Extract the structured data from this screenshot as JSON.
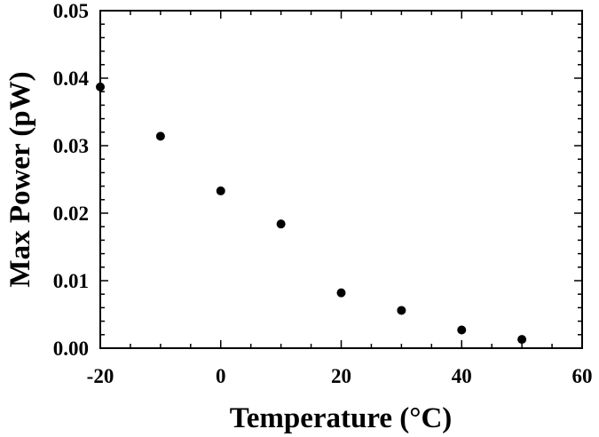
{
  "chart_data": {
    "type": "scatter",
    "xlabel": "Temperature (°C)",
    "ylabel": "Max Power (pW)",
    "xlim": [
      -20,
      60
    ],
    "ylim": [
      0,
      0.05
    ],
    "x_ticks": [
      -20,
      0,
      20,
      40,
      60
    ],
    "x_tick_labels": [
      "-20",
      "0",
      "20",
      "40",
      "60"
    ],
    "y_ticks": [
      0,
      0.01,
      0.02,
      0.03,
      0.04,
      0.05
    ],
    "y_tick_labels": [
      "0.00",
      "0.01",
      "0.02",
      "0.03",
      "0.04",
      "0.05"
    ],
    "grid": false,
    "legend": "none",
    "marker_color": "#000000",
    "series": [
      {
        "x": [
          -20,
          -10,
          0,
          10,
          20,
          30,
          40,
          50
        ],
        "y": [
          0.0387,
          0.0314,
          0.0233,
          0.0184,
          0.0082,
          0.0056,
          0.0027,
          0.0013
        ]
      }
    ]
  }
}
